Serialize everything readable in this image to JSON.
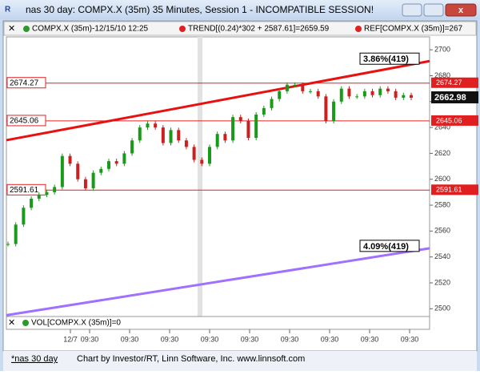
{
  "window": {
    "title": "nas 30 day: COMPX.X (35m) 35 Minutes, Session 1 - INCOMPATIBLE SESSION!"
  },
  "legend": [
    "COMPX.X (35m)-12/15/10 12:25",
    "TREND[(0.24)*302 + 2587.61]=2659.59",
    "REF[COMPX.X (35m)]=267"
  ],
  "chart_data": {
    "type": "candlestick",
    "up_color": "#1a9a1a",
    "down_color": "#cc2020",
    "values": [
      2550,
      2565,
      2578,
      2585,
      2588,
      2590,
      2594,
      2618,
      2612,
      2600,
      2593,
      2605,
      2608,
      2614,
      2612,
      2620,
      2630,
      2640,
      2643,
      2640,
      2628,
      2638,
      2630,
      2625,
      2615,
      2612,
      2625,
      2635,
      2630,
      2648,
      2645,
      2632,
      2650,
      2655,
      2662,
      2668,
      2673,
      2673,
      2668,
      2668,
      2664,
      2645,
      2660,
      2670,
      2664,
      2664,
      2668,
      2665,
      2670,
      2668,
      2663,
      2665,
      2662.98
    ],
    "levels": [
      2674.27,
      2645.06,
      2591.61
    ],
    "level_color": "#e02020",
    "trendlines": [
      {
        "color": "#e81010",
        "values": [
          2630.2,
          2691.3
        ],
        "label": "3.86%(419)"
      },
      {
        "color": "#a070ff",
        "values": [
          2495,
          2546.7
        ],
        "label": "4.09%(419)"
      }
    ],
    "ylim": [
      2494,
      2710
    ],
    "yticks": [
      2500,
      2520,
      2540,
      2560,
      2580,
      2600,
      2620,
      2640,
      2660,
      2680,
      2700
    ],
    "xticks": [
      "12/7",
      "09:30",
      "09:30",
      "09:30",
      "09:30",
      "09:30",
      "09:30",
      "09:30",
      "09:30",
      "09:30"
    ],
    "volume_label": "VOL[COMPX.X (35m)]=0"
  },
  "footer": {
    "tab": "*nas 30 day",
    "credit": "Chart by Investor/RT, Linn Software, Inc. www.linnsoft.com"
  }
}
